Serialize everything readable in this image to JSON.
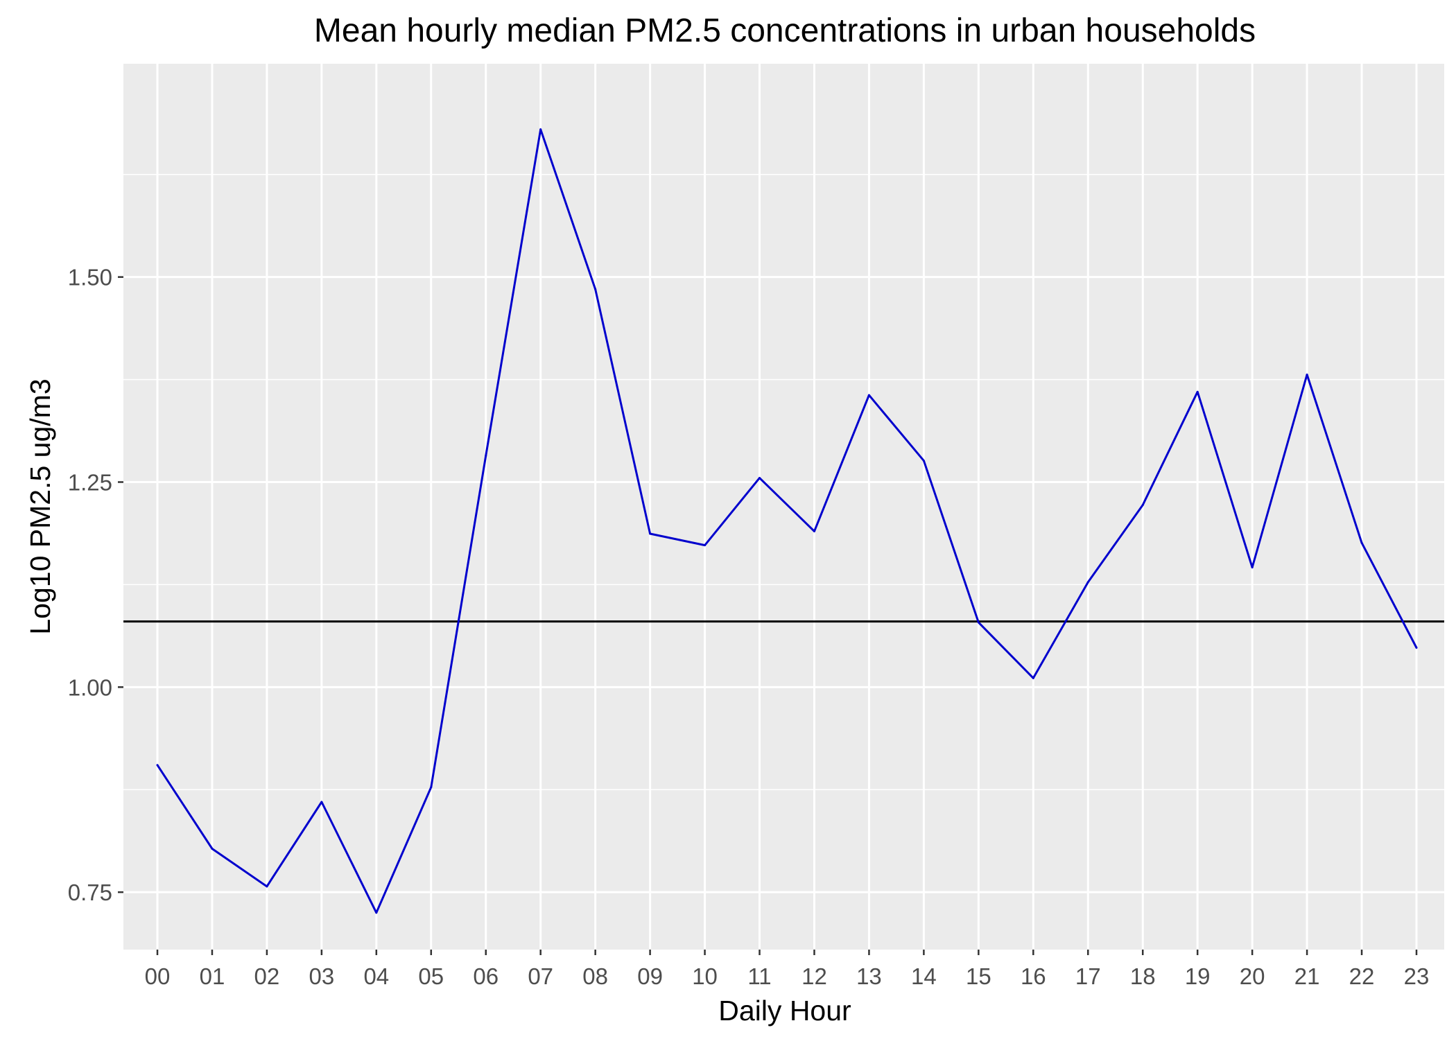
{
  "chart_data": {
    "type": "line",
    "title": "Mean hourly median PM2.5 concentrations in urban households",
    "xlabel": "Daily Hour",
    "ylabel": "Log10 PM2.5 ug/m3",
    "categories": [
      "00",
      "01",
      "02",
      "03",
      "04",
      "05",
      "06",
      "07",
      "08",
      "09",
      "10",
      "11",
      "12",
      "13",
      "14",
      "15",
      "16",
      "17",
      "18",
      "19",
      "20",
      "21",
      "22",
      "23"
    ],
    "series": [
      {
        "color": "#0000cd",
        "values": [
          0.905,
          0.803,
          0.757,
          0.86,
          0.725,
          0.878,
          1.282,
          1.68,
          1.485,
          1.187,
          1.173,
          1.255,
          1.19,
          1.356,
          1.276,
          1.079,
          1.011,
          1.128,
          1.222,
          1.36,
          1.146,
          1.381,
          1.176,
          1.048
        ]
      }
    ],
    "reference_line": {
      "y": 1.08,
      "color": "#000000"
    },
    "ylim": [
      0.68,
      1.76
    ],
    "yticks": [
      0.75,
      1.0,
      1.25,
      1.5
    ],
    "ytick_labels": [
      "0.75",
      "1.00",
      "1.25",
      "1.50"
    ],
    "grid": true,
    "panel_color": "#ebebeb",
    "grid_color": "#ffffff"
  }
}
